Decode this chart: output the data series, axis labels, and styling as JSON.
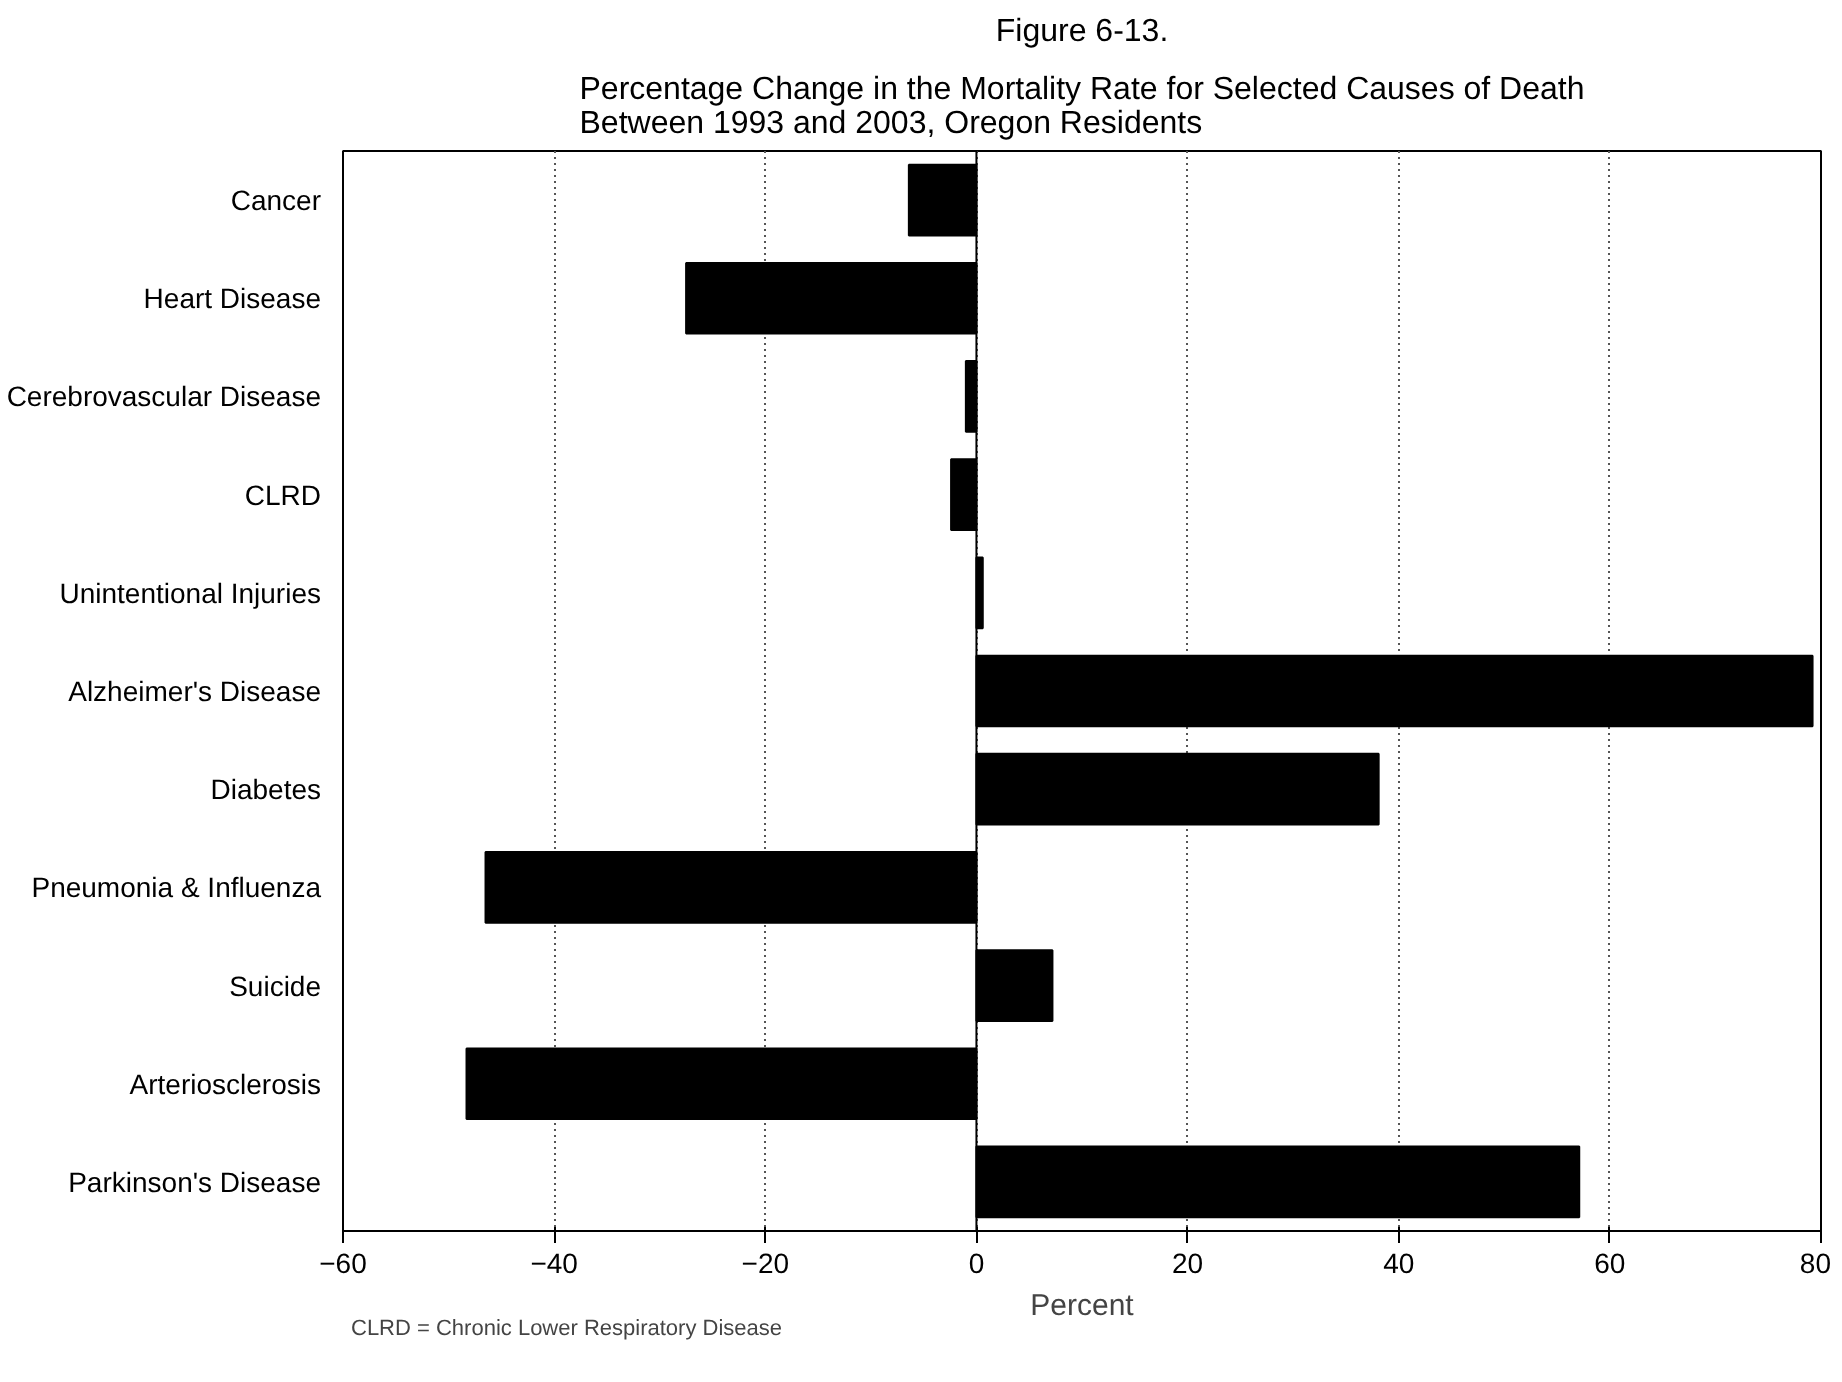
{
  "chart_data": {
    "type": "bar",
    "orientation": "horizontal",
    "title": "Figure 6-13.",
    "subtitle": "Percentage Change in the Mortality Rate for Selected Causes of Death\nBetween 1993 and 2003, Oregon Residents",
    "xlabel": "Percent",
    "categories": [
      "Cancer",
      "Heart Disease",
      "Cerebrovascular Disease",
      "CLRD",
      "Unintentional Injuries",
      "Alzheimer's Disease",
      "Diabetes",
      "Pneumonia & Influenza",
      "Suicide",
      "Arteriosclerosis",
      "Parkinson's Disease"
    ],
    "values": [
      -6.4,
      -27.5,
      -1.0,
      -2.4,
      0.6,
      79.2,
      38.1,
      -46.5,
      7.2,
      -48.3,
      57.1
    ],
    "color": "#000000",
    "xlim": [
      -60,
      80
    ],
    "xticks": [
      -60,
      -40,
      -20,
      0,
      20,
      40,
      60,
      80
    ],
    "grid": "x",
    "annotations": [
      "CLRD = Chronic Lower Respiratory Disease"
    ]
  }
}
